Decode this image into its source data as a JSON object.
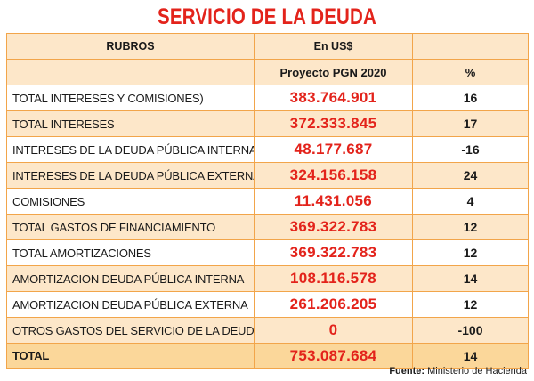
{
  "title": "SERVICIO DE LA DEUDA",
  "headers": {
    "rubros": "RUBROS",
    "currency": "En US$",
    "project": "Proyecto PGN 2020",
    "percent": "%"
  },
  "rows": [
    {
      "rubro": "TOTAL INTERESES Y COMISIONES)",
      "amount": "383.764.901",
      "pct": "16"
    },
    {
      "rubro": "TOTAL INTERESES",
      "amount": "372.333.845",
      "pct": "17"
    },
    {
      "rubro": "INTERESES DE LA DEUDA PÚBLICA INTERNA",
      "amount": "48.177.687",
      "pct": "-16"
    },
    {
      "rubro": "INTERESES DE LA DEUDA PÚBLICA EXTERNA",
      "amount": "324.156.158",
      "pct": "24"
    },
    {
      "rubro": "COMISIONES",
      "amount": "11.431.056",
      "pct": "4"
    },
    {
      "rubro": "TOTAL GASTOS DE FINANCIAMIENTO",
      "amount": "369.322.783",
      "pct": "12"
    },
    {
      "rubro": "TOTAL AMORTIZACIONES",
      "amount": "369.322.783",
      "pct": "12"
    },
    {
      "rubro": "AMORTIZACION DEUDA PÚBLICA INTERNA",
      "amount": "108.116.578",
      "pct": "14"
    },
    {
      "rubro": "AMORTIZACION  DEUDA PÚBLICA EXTERNA",
      "amount": "261.206.205",
      "pct": "12"
    },
    {
      "rubro": "OTROS GASTOS DEL SERVICIO DE LA DEUDA",
      "amount": "0",
      "pct": "-100"
    }
  ],
  "total": {
    "rubro": "TOTAL",
    "amount": "753.087.684",
    "pct": "14"
  },
  "source": {
    "label": "Fuente:",
    "text": "Ministerio de Hacienda"
  },
  "colors": {
    "title_red": "#e3231b",
    "amount_red": "#e3231b",
    "row_tint": "#fde7c9",
    "total_tint": "#fbd79a",
    "border": "#f2a54a"
  }
}
